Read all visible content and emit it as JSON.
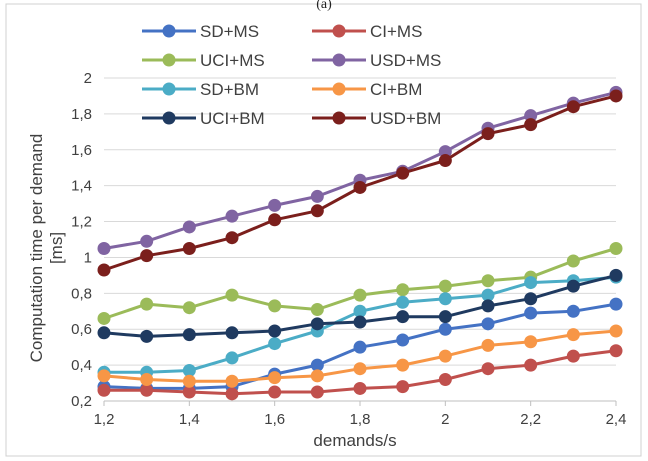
{
  "chart_data": {
    "type": "line",
    "title": "",
    "panel_label": "(a)",
    "xlabel": "demands/s",
    "ylabel": "Computation time per demand [ms]",
    "ylabel_main": "Computation time per demand",
    "ylabel_unit": "[ms]",
    "x": [
      1.2,
      1.3,
      1.4,
      1.5,
      1.6,
      1.7,
      1.8,
      1.9,
      2.0,
      2.1,
      2.2,
      2.3,
      2.4
    ],
    "xlim": [
      1.2,
      2.4
    ],
    "ylim": [
      0.2,
      2.0
    ],
    "x_ticks": [
      "1,2",
      "1,4",
      "1,6",
      "1,8",
      "2",
      "2,2",
      "2,4"
    ],
    "y_ticks": [
      "0,2",
      "0,4",
      "0,6",
      "0,8",
      "1",
      "1,2",
      "1,4",
      "1,6",
      "1,8",
      "2"
    ],
    "grid": "horizontal",
    "legend_position": "top",
    "series": [
      {
        "name": "SD+MS",
        "color": "#4472c4",
        "values": [
          0.28,
          0.27,
          0.27,
          0.28,
          0.35,
          0.4,
          0.5,
          0.54,
          0.6,
          0.63,
          0.69,
          0.7,
          0.74
        ]
      },
      {
        "name": "CI+MS",
        "color": "#c0504d",
        "values": [
          0.26,
          0.26,
          0.25,
          0.24,
          0.25,
          0.25,
          0.27,
          0.28,
          0.32,
          0.38,
          0.4,
          0.45,
          0.48
        ]
      },
      {
        "name": "UCI+MS",
        "color": "#9bbb59",
        "values": [
          0.66,
          0.74,
          0.72,
          0.79,
          0.73,
          0.71,
          0.79,
          0.82,
          0.84,
          0.87,
          0.89,
          0.98,
          1.05
        ]
      },
      {
        "name": "USD+MS",
        "color": "#8064a2",
        "values": [
          1.05,
          1.09,
          1.17,
          1.23,
          1.29,
          1.34,
          1.43,
          1.48,
          1.59,
          1.72,
          1.79,
          1.86,
          1.92
        ]
      },
      {
        "name": "SD+BM",
        "color": "#4bacc6",
        "values": [
          0.36,
          0.36,
          0.37,
          0.44,
          0.52,
          0.59,
          0.7,
          0.75,
          0.77,
          0.79,
          0.86,
          0.87,
          0.89
        ]
      },
      {
        "name": "CI+BM",
        "color": "#f79646",
        "values": [
          0.34,
          0.32,
          0.31,
          0.31,
          0.33,
          0.34,
          0.38,
          0.4,
          0.45,
          0.51,
          0.53,
          0.57,
          0.59
        ]
      },
      {
        "name": "UCI+BM",
        "color": "#1f3a60",
        "values": [
          0.58,
          0.56,
          0.57,
          0.58,
          0.59,
          0.63,
          0.64,
          0.67,
          0.67,
          0.73,
          0.77,
          0.84,
          0.9
        ]
      },
      {
        "name": "USD+BM",
        "color": "#7b1f1c",
        "values": [
          0.93,
          1.01,
          1.05,
          1.11,
          1.21,
          1.26,
          1.39,
          1.47,
          1.54,
          1.69,
          1.74,
          1.84,
          1.9
        ]
      }
    ]
  }
}
